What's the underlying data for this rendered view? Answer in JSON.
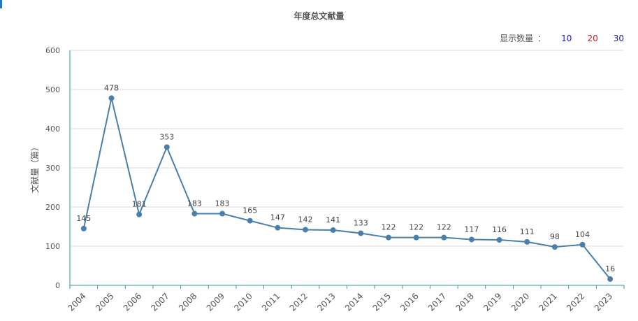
{
  "chart_data": {
    "type": "line",
    "title": "年度总文献量",
    "ylabel": "文献量（篇）",
    "xlabel": "",
    "ylim": [
      0,
      600
    ],
    "yticks": [
      0,
      100,
      200,
      300,
      400,
      500,
      600
    ],
    "grid": true,
    "categories": [
      "2004",
      "2005",
      "2006",
      "2007",
      "2008",
      "2009",
      "2010",
      "2011",
      "2012",
      "2013",
      "2014",
      "2015",
      "2016",
      "2017",
      "2018",
      "2019",
      "2020",
      "2021",
      "2022",
      "2023"
    ],
    "values": [
      145,
      478,
      181,
      353,
      183,
      183,
      165,
      147,
      142,
      141,
      133,
      122,
      122,
      122,
      117,
      116,
      111,
      98,
      104,
      16
    ],
    "line_color": "#4a7fab",
    "axis_color": "#2e9e8f"
  },
  "controls": {
    "label": "显示数量",
    "separator": "：",
    "options": [
      {
        "label": "10",
        "color": "#1a1acc"
      },
      {
        "label": "20",
        "color": "#cc1a1a"
      },
      {
        "label": "30",
        "color": "#1a1a99"
      }
    ]
  }
}
